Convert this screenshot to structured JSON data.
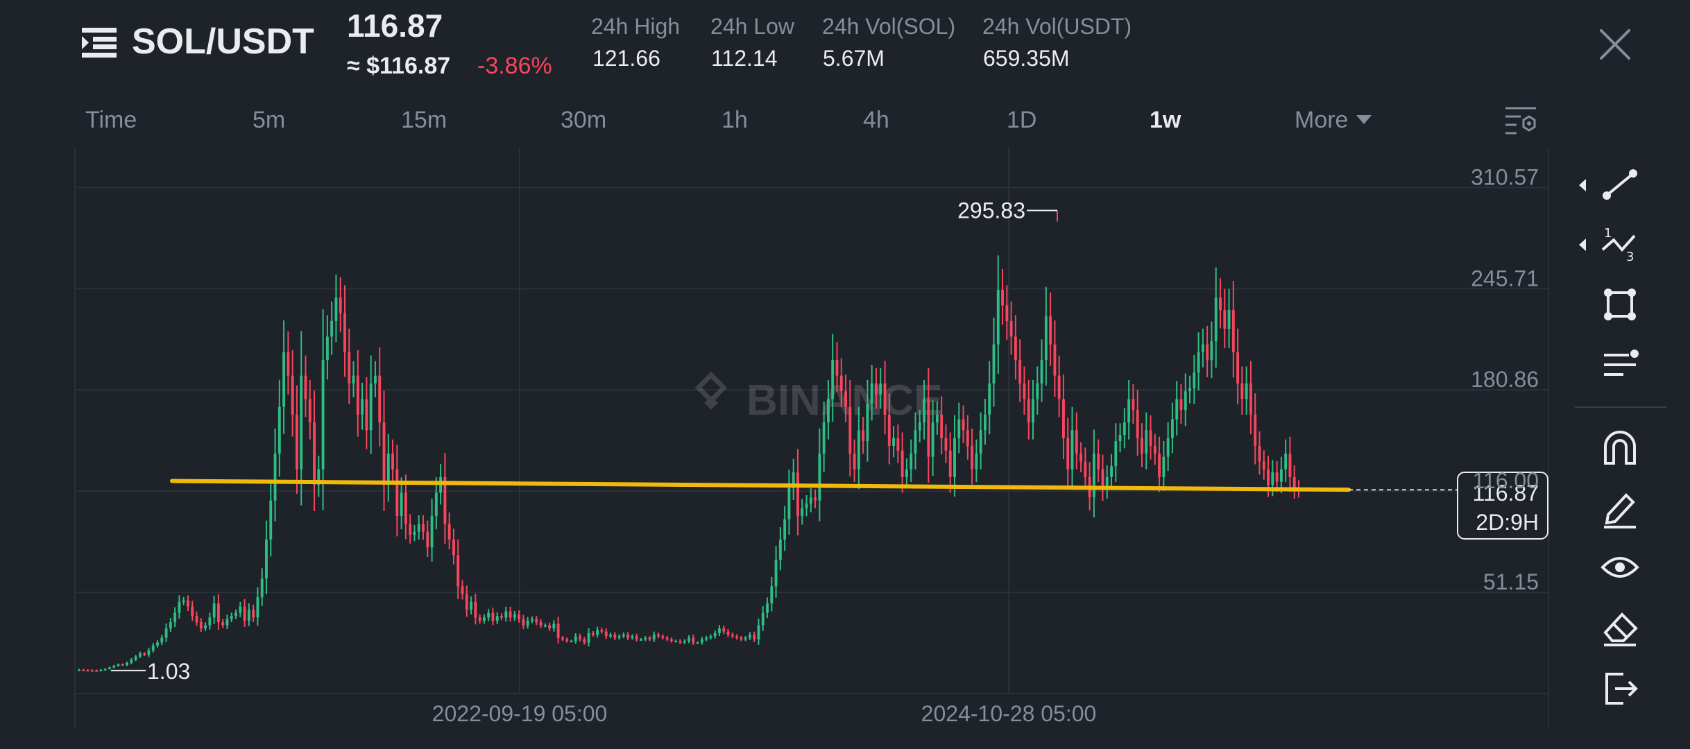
{
  "header": {
    "pair": "SOL/USDT",
    "last_price": "116.87",
    "approx_usd": "≈ $116.87",
    "change_pct": "-3.86%",
    "stats": [
      {
        "label": "24h High",
        "value": "121.66"
      },
      {
        "label": "24h Low",
        "value": "112.14"
      },
      {
        "label": "24h Vol(SOL)",
        "value": "5.67M"
      },
      {
        "label": "24h Vol(USDT)",
        "value": "659.35M"
      }
    ]
  },
  "timeframes": [
    "Time",
    "5m",
    "15m",
    "30m",
    "1h",
    "4h",
    "1D",
    "1w",
    "More"
  ],
  "active_timeframe": "1w",
  "watermark": "BINANCE",
  "colors": {
    "up": "#2ebd85",
    "down": "#f6465d",
    "trendline": "#f0b90b",
    "grid": "#2b3139"
  },
  "icons": {
    "left": [
      "menu-icon"
    ],
    "right": [
      "close-icon",
      "chart-settings-icon"
    ],
    "tools": [
      "trend-line-icon",
      "fibonacci-icon",
      "rectangle-icon",
      "parallel-lines-icon",
      "magnet-icon",
      "brush-icon",
      "eye-icon",
      "eraser-icon",
      "exit-icon"
    ]
  },
  "chart_data": {
    "type": "candlestick",
    "interval": "1w",
    "y_axis_ticks": [
      "310.57",
      "245.71",
      "180.86",
      "116.00",
      "51.15"
    ],
    "ylim": [
      -13.7,
      336.5
    ],
    "x_axis_ticks": [
      "2022-09-19 05:00",
      "2024-10-28 05:00"
    ],
    "current_price_label": "116.87",
    "countdown_label": "2D:9H",
    "max_annotation": "295.83",
    "min_annotation": "1.03",
    "trendline": {
      "start_value": 122.5,
      "end_value": 116.9
    },
    "close_values": [
      1.5,
      1.3,
      1.2,
      1.1,
      1.03,
      1.4,
      2,
      3,
      4,
      5,
      4.5,
      6,
      8,
      10,
      12,
      11,
      14,
      17,
      19,
      22,
      28,
      32,
      38,
      45,
      46,
      42,
      36,
      32,
      28,
      30,
      35,
      44,
      32,
      30,
      34,
      36,
      38,
      42,
      33,
      40,
      35,
      48,
      60,
      85,
      110,
      140,
      170,
      205,
      190,
      165,
      130,
      190,
      175,
      160,
      120,
      130,
      200,
      215,
      225,
      240,
      230,
      205,
      185,
      190,
      165,
      175,
      155,
      185,
      190,
      160,
      120,
      140,
      130,
      100,
      115,
      95,
      88,
      90,
      95,
      90,
      80,
      100,
      115,
      125,
      95,
      85,
      75,
      55,
      50,
      40,
      45,
      35,
      33,
      35,
      38,
      33,
      36,
      35,
      39,
      35,
      37,
      34,
      30,
      33,
      34,
      32,
      30,
      30,
      28,
      31,
      22,
      21,
      20,
      20,
      23,
      21,
      19,
      25,
      24,
      27,
      26,
      23,
      24,
      22,
      23,
      24,
      22,
      23,
      21,
      21,
      22,
      21,
      24,
      23,
      22,
      21,
      20,
      20,
      19,
      20,
      22,
      19,
      19,
      21,
      22,
      23,
      25,
      28,
      26,
      24,
      23,
      22,
      21,
      22,
      24,
      21,
      30,
      38,
      44,
      55,
      72,
      85,
      98,
      118,
      128,
      100,
      105,
      108,
      112,
      110,
      140,
      160,
      175,
      200,
      190,
      180,
      170,
      140,
      130,
      155,
      148,
      172,
      185,
      178,
      185,
      165,
      145,
      150,
      142,
      125,
      130,
      140,
      155,
      160,
      175,
      138,
      160,
      165,
      150,
      142,
      125,
      150,
      162,
      155,
      145,
      130,
      140,
      155,
      165,
      185,
      210,
      245,
      235,
      225,
      215,
      200,
      185,
      175,
      160,
      175,
      185,
      200,
      228,
      210,
      190,
      175,
      150,
      130,
      155,
      140,
      135,
      125,
      112,
      140,
      130,
      118,
      125,
      132,
      148,
      152,
      160,
      175,
      168,
      150,
      140,
      155,
      145,
      140,
      125,
      138,
      150,
      162,
      175,
      168,
      180,
      182,
      192,
      205,
      210,
      200,
      212,
      240,
      232,
      220,
      232,
      205,
      185,
      175,
      185,
      165,
      145,
      135,
      130,
      120,
      128,
      122,
      130,
      140,
      125,
      118,
      116.87
    ],
    "open_values": [
      1.5,
      1.5,
      1.3,
      1.2,
      1.1,
      1.03,
      1.4,
      2,
      3,
      4,
      5,
      4.5,
      6,
      8,
      10,
      12,
      11,
      14,
      17,
      19,
      22,
      28,
      32,
      38,
      45,
      46,
      42,
      36,
      32,
      28,
      30,
      35,
      44,
      32,
      30,
      34,
      36,
      38,
      42,
      33,
      40,
      35,
      48,
      60,
      85,
      110,
      140,
      170,
      205,
      190,
      165,
      130,
      190,
      175,
      160,
      120,
      130,
      200,
      215,
      225,
      240,
      230,
      205,
      185,
      190,
      165,
      175,
      155,
      185,
      190,
      160,
      120,
      140,
      130,
      100,
      115,
      95,
      88,
      90,
      95,
      90,
      80,
      100,
      115,
      125,
      95,
      85,
      75,
      55,
      50,
      40,
      45,
      35,
      33,
      35,
      38,
      33,
      36,
      35,
      39,
      35,
      37,
      34,
      30,
      33,
      34,
      32,
      30,
      30,
      28,
      31,
      22,
      21,
      20,
      20,
      23,
      21,
      19,
      25,
      24,
      27,
      26,
      23,
      24,
      22,
      23,
      24,
      22,
      23,
      21,
      21,
      22,
      21,
      24,
      23,
      22,
      21,
      20,
      20,
      19,
      20,
      22,
      19,
      19,
      21,
      22,
      23,
      25,
      28,
      26,
      24,
      23,
      22,
      21,
      22,
      24,
      21,
      30,
      38,
      44,
      55,
      72,
      85,
      98,
      118,
      128,
      100,
      105,
      108,
      112,
      110,
      140,
      160,
      175,
      200,
      190,
      180,
      170,
      140,
      130,
      155,
      148,
      172,
      185,
      178,
      185,
      165,
      145,
      150,
      142,
      125,
      130,
      140,
      155,
      160,
      175,
      138,
      160,
      165,
      150,
      142,
      125,
      150,
      162,
      155,
      145,
      130,
      140,
      155,
      165,
      185,
      210,
      245,
      235,
      225,
      215,
      200,
      185,
      175,
      160,
      175,
      185,
      200,
      228,
      210,
      190,
      175,
      150,
      130,
      155,
      140,
      135,
      125,
      112,
      140,
      130,
      118,
      125,
      132,
      148,
      152,
      160,
      175,
      168,
      150,
      140,
      155,
      145,
      140,
      125,
      138,
      150,
      162,
      175,
      168,
      180,
      182,
      192,
      205,
      210,
      200,
      212,
      240,
      232,
      220,
      232,
      205,
      185,
      175,
      185,
      165,
      145,
      135,
      130,
      120,
      128,
      122,
      130,
      140,
      125,
      118
    ]
  }
}
